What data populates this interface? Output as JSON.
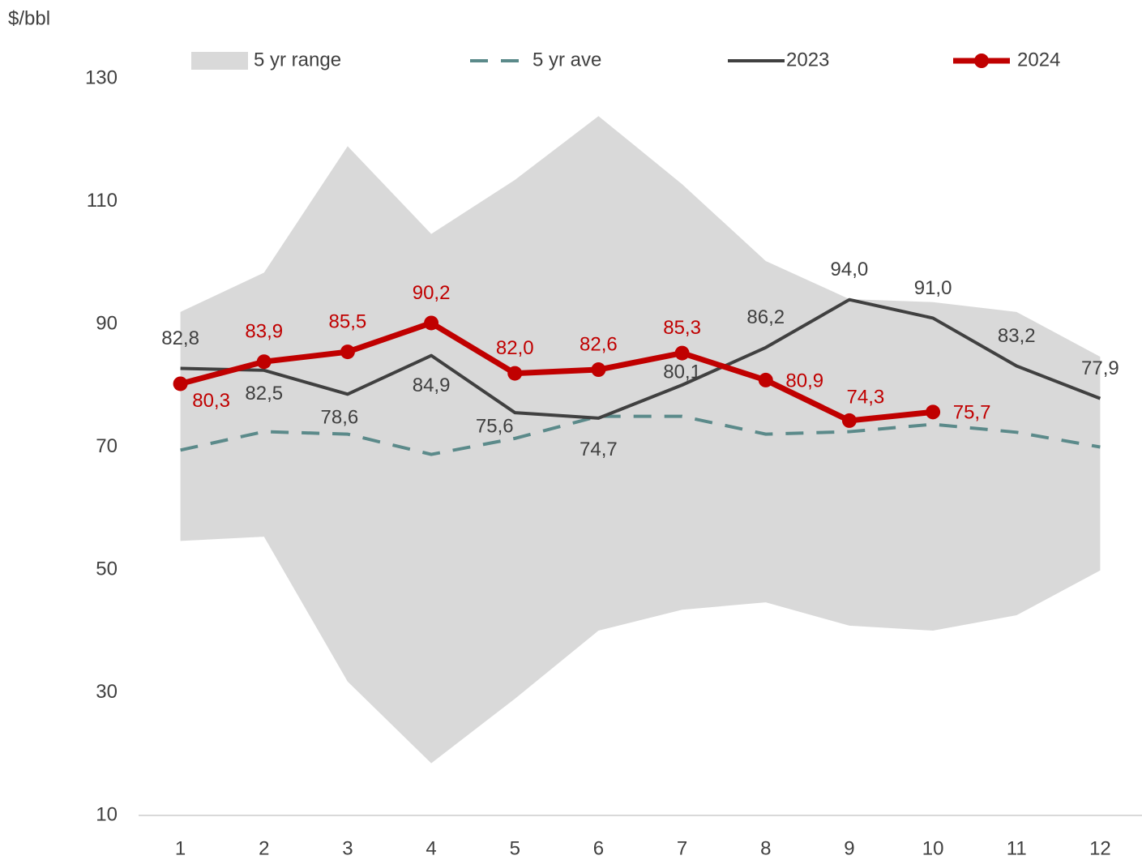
{
  "chart_data": {
    "type": "line",
    "y_label": "$/bbl",
    "categories": [
      "1",
      "2",
      "3",
      "4",
      "5",
      "6",
      "7",
      "8",
      "9",
      "10",
      "11",
      "12"
    ],
    "ylim": [
      10,
      130
    ],
    "yticks": [
      10,
      30,
      50,
      70,
      90,
      110,
      130
    ],
    "series": [
      {
        "name": "5 yr range",
        "kind": "range",
        "color": "#d9d9d9",
        "high": [
          92.0,
          98.4,
          119.0,
          104.7,
          113.5,
          123.9,
          112.8,
          100.3,
          94.1,
          93.6,
          92.0,
          84.7
        ],
        "low": [
          54.7,
          55.4,
          31.8,
          18.5,
          29.0,
          40.1,
          43.5,
          44.7,
          40.9,
          40.1,
          42.6,
          49.9
        ]
      },
      {
        "name": "5 yr ave",
        "kind": "dashed",
        "color": "#5b8a8a",
        "values": [
          69.5,
          72.5,
          72.1,
          68.8,
          71.4,
          75.0,
          75.0,
          72.1,
          72.5,
          73.7,
          72.4,
          70.0
        ]
      },
      {
        "name": "2023",
        "kind": "line",
        "color": "#404040",
        "values": [
          82.8,
          82.5,
          78.6,
          84.9,
          75.6,
          74.7,
          80.1,
          86.2,
          94.0,
          91.0,
          83.2,
          77.9
        ],
        "value_labels": [
          "82,8",
          "82,5",
          "78,6",
          "84,9",
          "75,6",
          "74,7",
          "80,1",
          "86,2",
          "94,0",
          "91,0",
          "83,2",
          "77,9"
        ]
      },
      {
        "name": "2024",
        "kind": "marker-line",
        "color": "#c00000",
        "values": [
          80.3,
          83.9,
          85.5,
          90.2,
          82.0,
          82.6,
          85.3,
          80.9,
          74.3,
          75.7,
          null,
          null
        ],
        "value_labels": [
          "80,3",
          "83,9",
          "85,5",
          "90,2",
          "82,0",
          "82,6",
          "85,3",
          "80,9",
          "74,3",
          "75,7",
          null,
          null
        ]
      }
    ]
  }
}
